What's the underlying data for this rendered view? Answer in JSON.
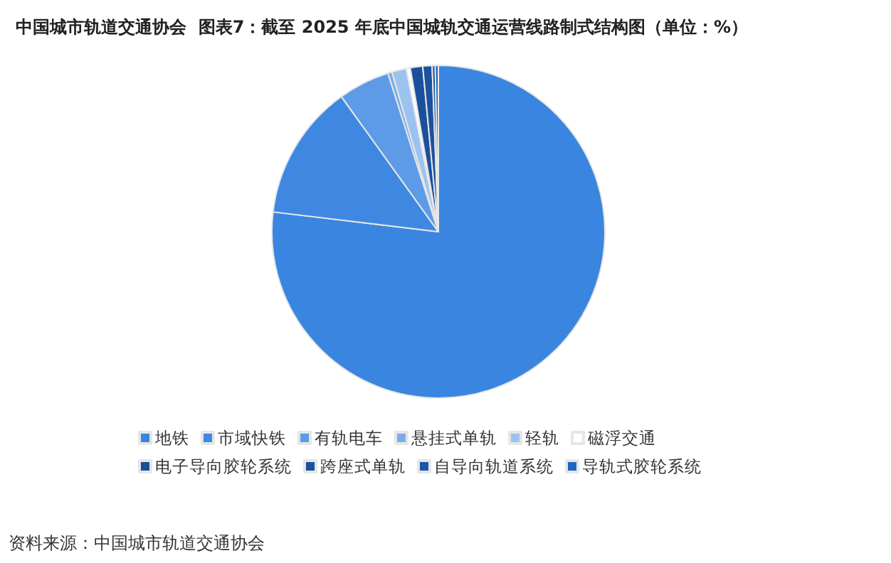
{
  "chart_data": {
    "type": "pie",
    "title": "中国城市轨道交通协会  图表7：截至 2025 年底中国城轨交通运营线路制式结构图（单位：%）",
    "categories": [
      "地铁",
      "市域快铁",
      "有轨电车",
      "悬挂式单轨",
      "轻轨",
      "磁浮交通",
      "电子导向胶轮系统",
      "跨座式单轨",
      "自导向轨道系统",
      "导轨式胶轮系统"
    ],
    "values": [
      76.9,
      13.2,
      5,
      0.4,
      1.4,
      0.4,
      1.2,
      0.9,
      0.3,
      0.3
    ],
    "colors": [
      "#3a85e0",
      "#3f88e2",
      "#5d9be8",
      "#7aaeea",
      "#9cc3f0",
      "#ffffff",
      "#1a4f9c",
      "#1b519f",
      "#1c56a8",
      "#2065c0"
    ],
    "legend": "bottom",
    "annotations": [
      "资料来源：中国城市轨道交通协会"
    ]
  }
}
